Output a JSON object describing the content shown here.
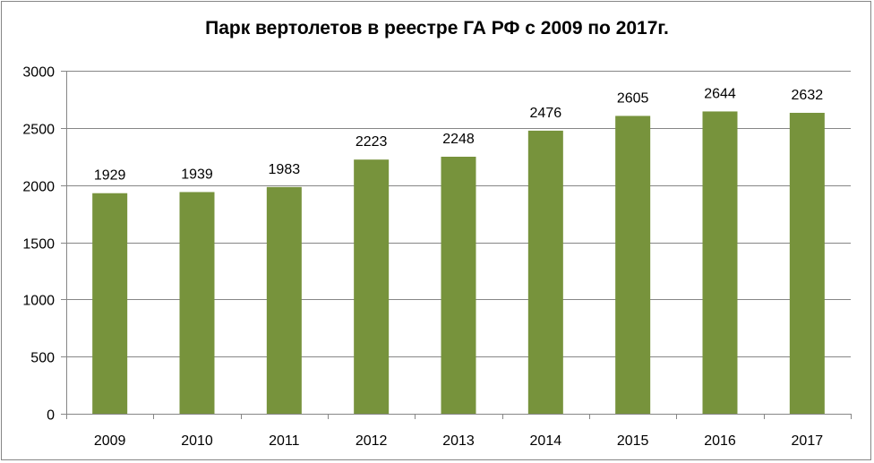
{
  "chart_data": {
    "type": "bar",
    "title": "Парк вертолетов в реестре ГА РФ с 2009 по 2017г.",
    "categories": [
      "2009",
      "2010",
      "2011",
      "2012",
      "2013",
      "2014",
      "2015",
      "2016",
      "2017"
    ],
    "values": [
      1929,
      1939,
      1983,
      2223,
      2248,
      2476,
      2605,
      2644,
      2632
    ],
    "data_labels": [
      "1929",
      "1939",
      "1983",
      "2223",
      "2248",
      "2476",
      "2605",
      "2644",
      "2632"
    ],
    "ylim": [
      0,
      3000
    ],
    "yticks": [
      0,
      500,
      1000,
      1500,
      2000,
      2500,
      3000
    ],
    "ytick_labels": [
      "0",
      "500",
      "1000",
      "1500",
      "2000",
      "2500",
      "3000"
    ],
    "grid": true,
    "legend": false,
    "bar_color": "#77933c",
    "grid_color": "#868686",
    "axis_color": "#868686"
  }
}
